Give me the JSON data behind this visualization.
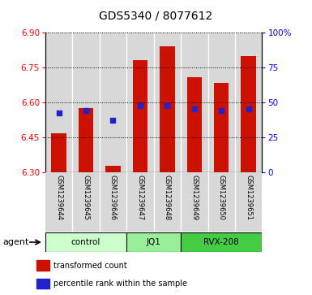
{
  "title": "GDS5340 / 8077612",
  "samples": [
    "GSM1239644",
    "GSM1239645",
    "GSM1239646",
    "GSM1239647",
    "GSM1239648",
    "GSM1239649",
    "GSM1239650",
    "GSM1239651"
  ],
  "bar_bottom": 6.3,
  "bar_tops": [
    6.47,
    6.575,
    6.33,
    6.78,
    6.84,
    6.71,
    6.685,
    6.8
  ],
  "blue_y": [
    6.555,
    6.566,
    6.525,
    6.585,
    6.585,
    6.572,
    6.566,
    6.572
  ],
  "bar_color": "#cc1100",
  "blue_color": "#2222cc",
  "ylim_left": [
    6.3,
    6.9
  ],
  "yticks_left": [
    6.3,
    6.45,
    6.6,
    6.75,
    6.9
  ],
  "ylim_right": [
    0,
    100
  ],
  "yticks_right": [
    0,
    25,
    50,
    75,
    100
  ],
  "ytick_labels_right": [
    "0",
    "25",
    "50",
    "75",
    "100%"
  ],
  "groups": [
    {
      "label": "control",
      "start": 0,
      "end": 3,
      "color": "#ccffcc"
    },
    {
      "label": "JQ1",
      "start": 3,
      "end": 5,
      "color": "#99ee99"
    },
    {
      "label": "RVX-208",
      "start": 5,
      "end": 8,
      "color": "#44cc44"
    }
  ],
  "agent_label": "agent",
  "legend_items": [
    {
      "color": "#cc1100",
      "label": "transformed count"
    },
    {
      "color": "#2222cc",
      "label": "percentile rank within the sample"
    }
  ],
  "bar_width": 0.55,
  "background_plot": "#d8d8d8",
  "figsize": [
    3.85,
    3.63
  ],
  "dpi": 100
}
